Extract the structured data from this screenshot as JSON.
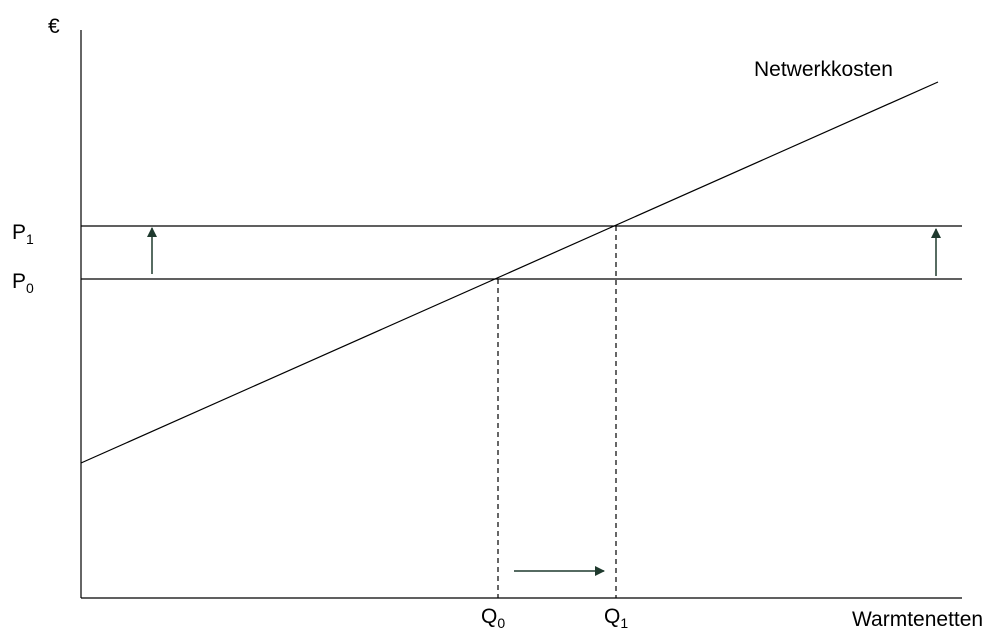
{
  "diagram": {
    "y_axis_symbol": "€",
    "x_axis_label": "Warmtenetten",
    "curve_label": "Netwerkkosten",
    "price_labels": [
      {
        "base": "P",
        "sub": "1"
      },
      {
        "base": "P",
        "sub": "0"
      }
    ],
    "quantity_labels": [
      {
        "base": "Q",
        "sub": "0"
      },
      {
        "base": "Q",
        "sub": "1"
      }
    ]
  }
}
